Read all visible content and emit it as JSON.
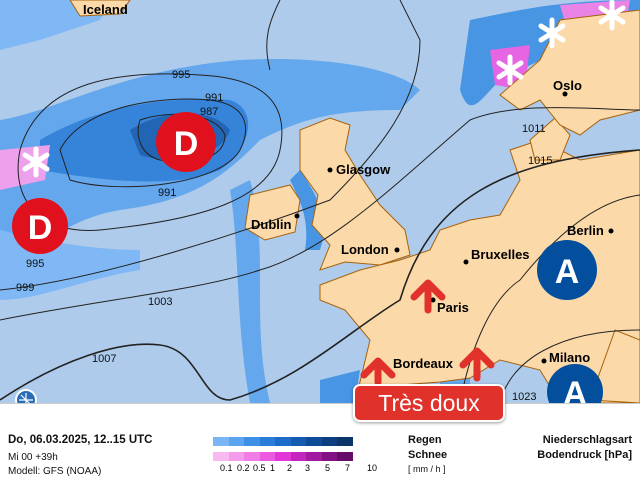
{
  "map": {
    "cities": [
      "Iceland",
      "Oslo",
      "Glasgow",
      "Dublin",
      "London",
      "Bruxelles",
      "Berlin",
      "Paris",
      "Bordeaux",
      "Milano"
    ],
    "isobars": [
      "995",
      "991",
      "987",
      "991",
      "995",
      "999",
      "1003",
      "1007",
      "1011",
      "1015",
      "1023"
    ],
    "low_label": "D",
    "high_label": "A",
    "colors": {
      "sea": "#aecbeb",
      "land": "#fcd9a8",
      "border": "#a8620c",
      "low": "#e0101c",
      "high": "#034f9e",
      "arrow": "#e0312b"
    }
  },
  "badge": "Très doux",
  "legend": {
    "date": "Do, 06.03.2025, 12..15 UTC",
    "run": "Mi 00 +39h",
    "model": "Modell: GFS (NOAA)",
    "rain_label": "Regen",
    "snow_label": "Schnee",
    "unit": "[ mm / h ]",
    "ticks": [
      "0.1",
      "0.2",
      "0.5",
      "1",
      "2",
      "3",
      "5",
      "7",
      "10"
    ],
    "rain_colors": [
      "#7ab6f5",
      "#5ca4ee",
      "#3d90e3",
      "#2a7dd8",
      "#1d6cc8",
      "#155bb0",
      "#0f4c98",
      "#0d3f80",
      "#0b3468"
    ],
    "snow_colors": [
      "#f8b8f0",
      "#f49ceb",
      "#f07ce6",
      "#ec5ae2",
      "#e236d8",
      "#c425be",
      "#a21aa0",
      "#821284",
      "#650c68"
    ],
    "title1": "Niederschlagsart",
    "title2": "Bodendruck [hPa]"
  }
}
